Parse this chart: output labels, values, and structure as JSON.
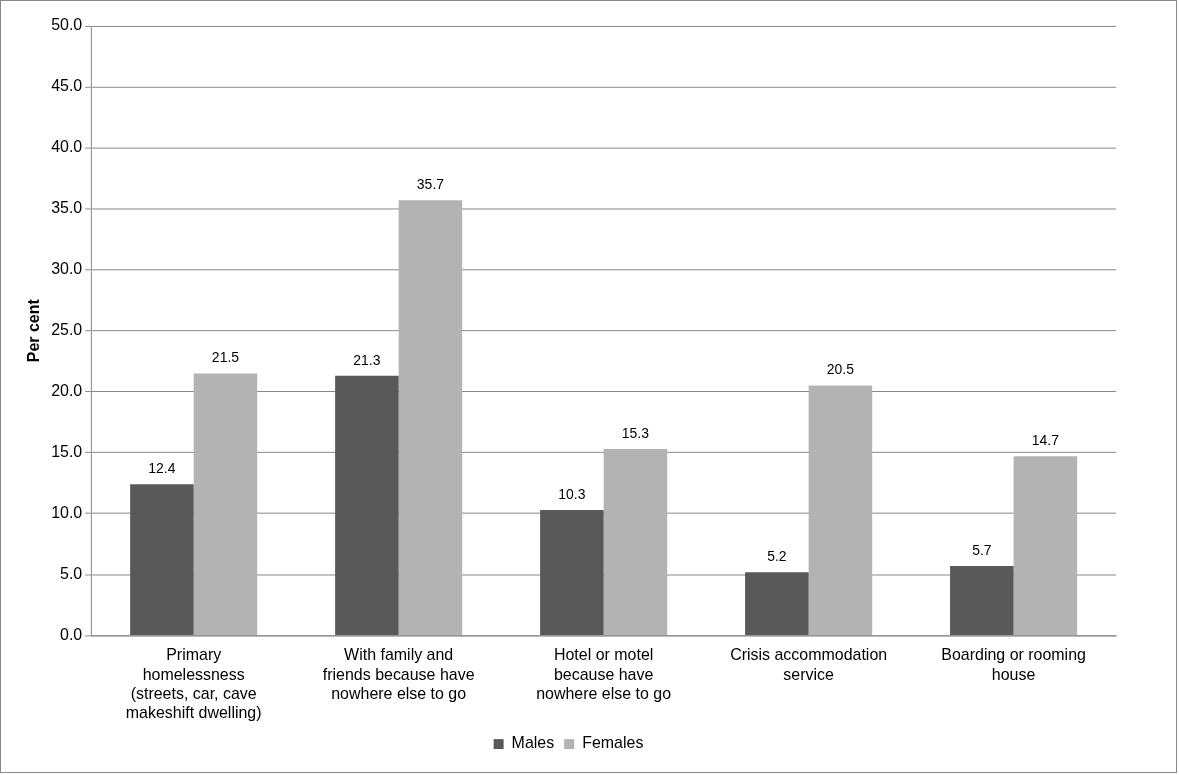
{
  "chart_data": {
    "type": "bar",
    "ylabel": "Per cent",
    "categories": [
      "Primary homelessness (streets, car, cave makeshift dwelling)",
      "With family and friends because have nowhere else to go",
      "Hotel or motel because have nowhere else to go",
      "Crisis accommodation service",
      "Boarding or rooming house"
    ],
    "series": [
      {
        "name": "Males",
        "color": "#595959",
        "values": [
          12.4,
          21.3,
          10.3,
          5.2,
          5.7
        ]
      },
      {
        "name": "Females",
        "color": "#b3b3b3",
        "values": [
          21.5,
          35.7,
          15.3,
          20.5,
          14.7
        ]
      }
    ],
    "ylim": [
      0,
      50
    ],
    "yticks": [
      {
        "value": 0,
        "label": "0.0"
      },
      {
        "value": 5,
        "label": "5.0"
      },
      {
        "value": 10,
        "label": "10.0"
      },
      {
        "value": 15,
        "label": "15.0"
      },
      {
        "value": 20,
        "label": "20.0"
      },
      {
        "value": 25,
        "label": "25.0"
      },
      {
        "value": 30,
        "label": "30.0"
      },
      {
        "value": 35,
        "label": "35.0"
      },
      {
        "value": 40,
        "label": "40.0"
      },
      {
        "value": 45,
        "label": "45.0"
      },
      {
        "value": 50,
        "label": "50.0"
      }
    ],
    "grid": "y",
    "legend": "bottom",
    "data_labels": true
  }
}
